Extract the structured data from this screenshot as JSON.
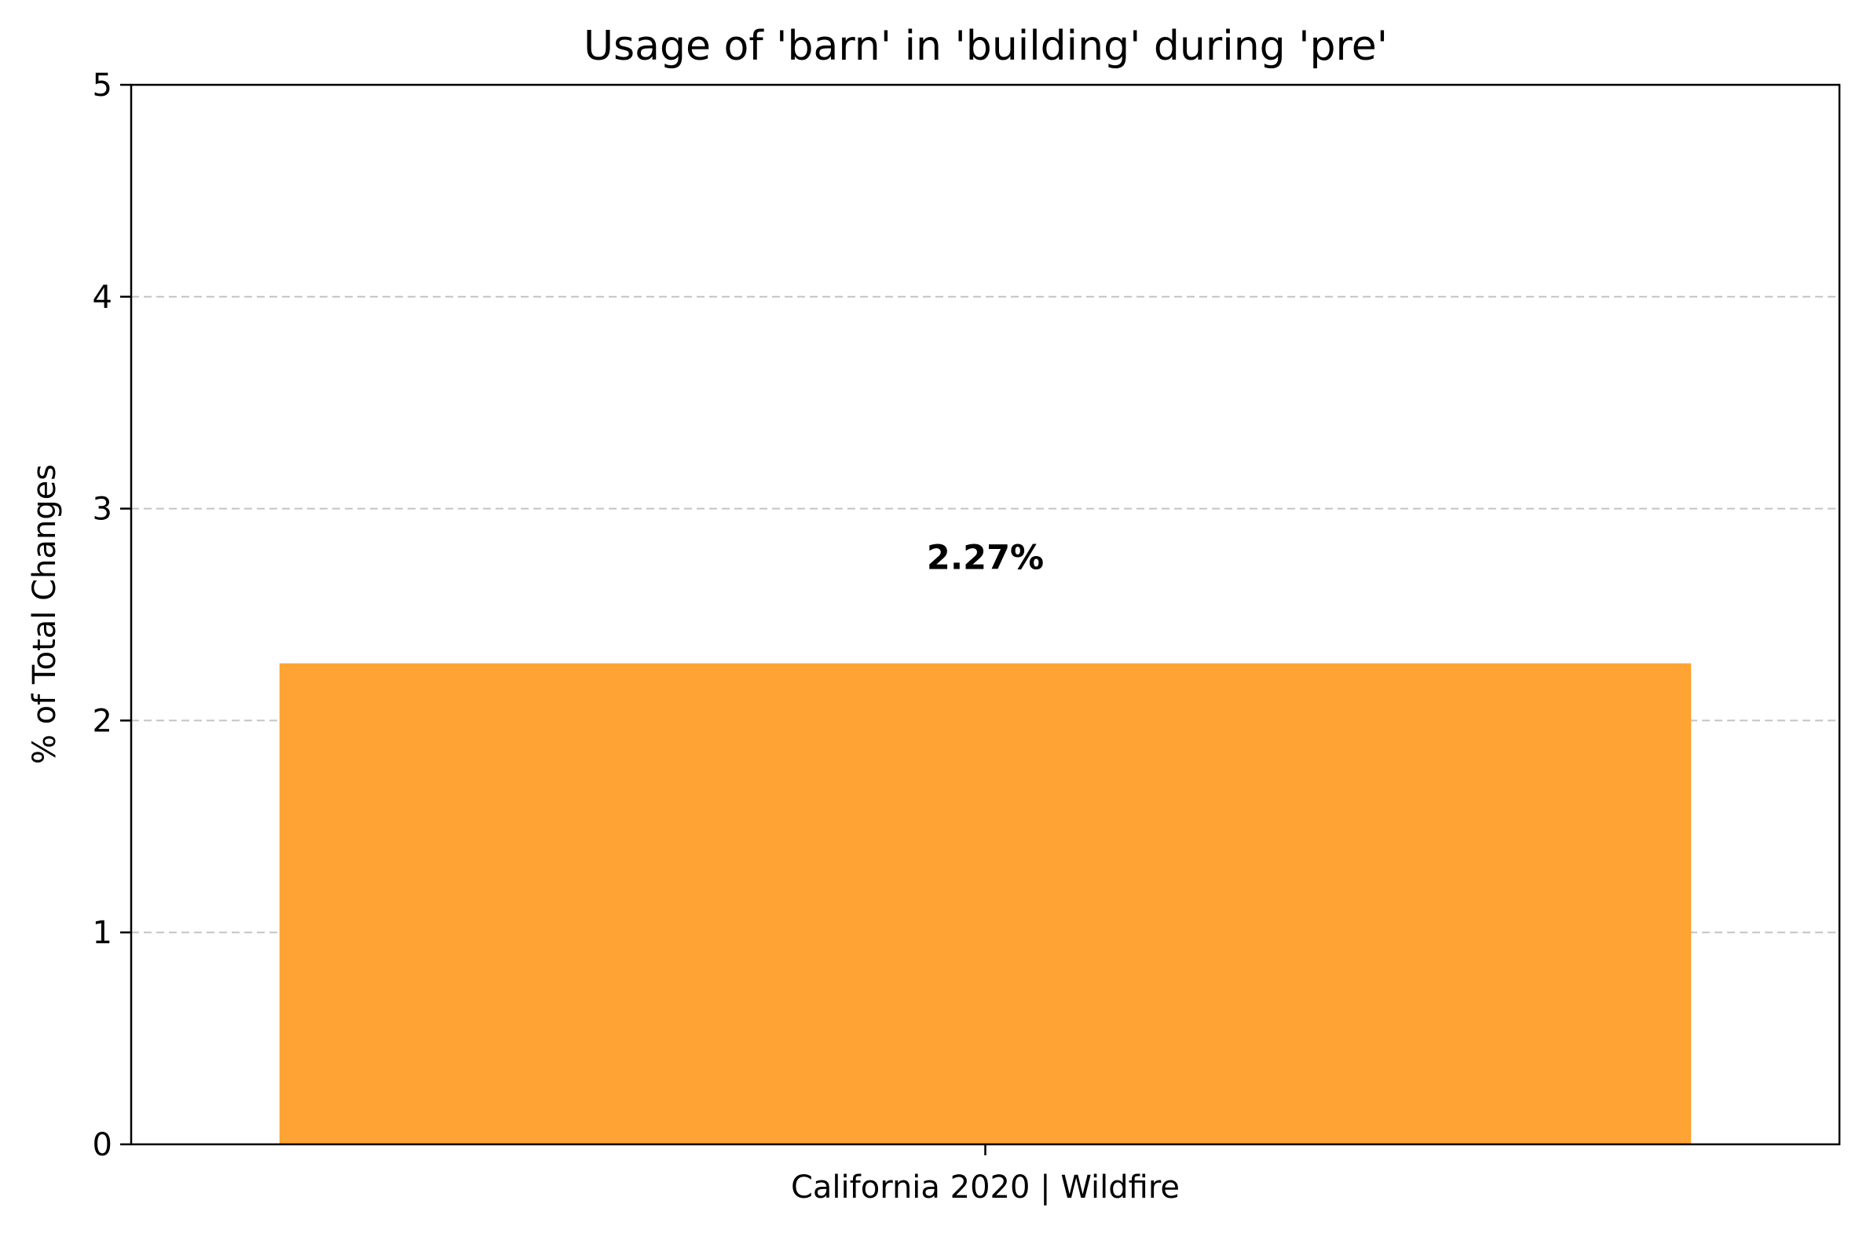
{
  "chart_data": {
    "type": "bar",
    "title": "Usage of 'barn' in 'building' during 'pre'",
    "xlabel": "",
    "ylabel": "% of Total Changes",
    "categories": [
      "California 2020 | Wildfire"
    ],
    "values": [
      2.27
    ],
    "data_labels": [
      "2.27%"
    ],
    "ylim": [
      0,
      5
    ],
    "yticks": [
      "0",
      "1",
      "2",
      "3",
      "4",
      "5"
    ],
    "bar_color": "#ffa434",
    "grid": true,
    "grid_axis": "y",
    "legend": false
  }
}
